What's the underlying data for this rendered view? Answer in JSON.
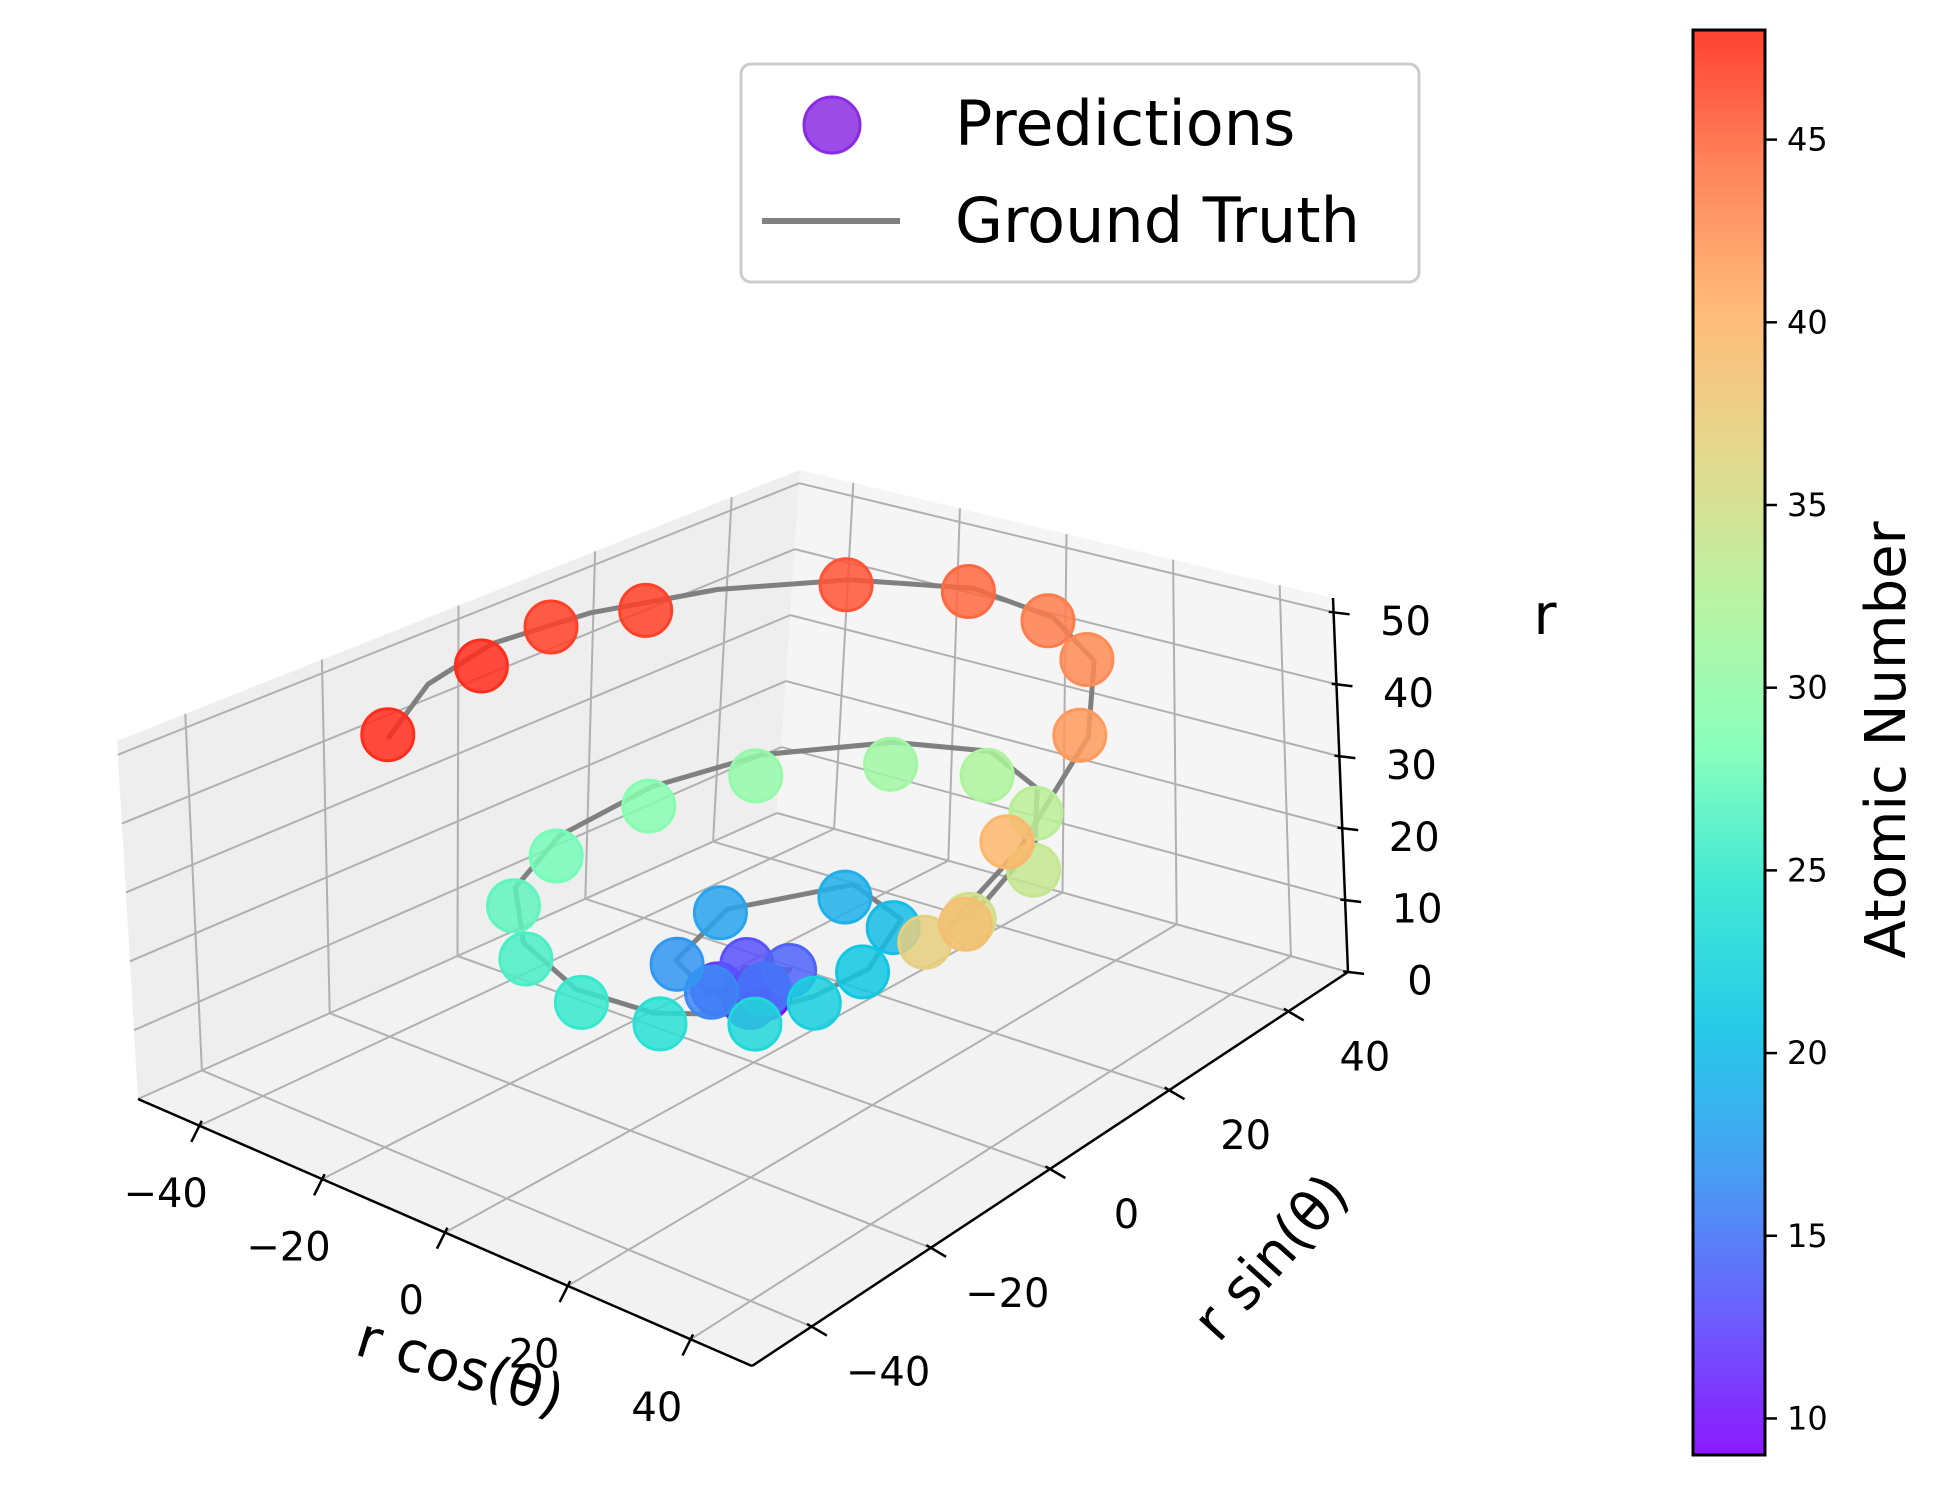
{
  "chart_data": {
    "type": "scatter",
    "projection": "3d",
    "xlabel": "r cos(θ)",
    "ylabel": "r sin(θ)",
    "zlabel": "r",
    "xticks": [
      "−40",
      "−20",
      "0",
      "20",
      "40"
    ],
    "yticks": [
      "−40",
      "−20",
      "0",
      "20",
      "40"
    ],
    "zticks": [
      "0",
      "10",
      "20",
      "30",
      "40",
      "50"
    ],
    "xlim": [
      -50,
      50
    ],
    "ylim": [
      -50,
      50
    ],
    "zlim": [
      0,
      52
    ],
    "legend": {
      "position": "top-center",
      "entries": [
        {
          "label": "Predictions",
          "kind": "marker",
          "color": "#8a2be2"
        },
        {
          "label": "Ground Truth",
          "kind": "line",
          "color": "#808080"
        }
      ]
    },
    "colorbar": {
      "label": "Atomic Number",
      "range": [
        9,
        48
      ],
      "ticks": [
        "10",
        "15",
        "20",
        "25",
        "30",
        "35",
        "40",
        "45"
      ],
      "colormap": "rainbow"
    },
    "series": [
      {
        "name": "Predictions",
        "kind": "scatter",
        "color_by": "Atomic Number",
        "points": [
          {
            "x": -0.5,
            "y": 0.5,
            "z": 9.2,
            "c": 9
          },
          {
            "x": 1.2,
            "y": 1.5,
            "z": 10.1,
            "c": 10
          },
          {
            "x": 2.2,
            "y": -1.8,
            "z": 10.8,
            "c": 11
          },
          {
            "x": -2.6,
            "y": -2.4,
            "z": 11.6,
            "c": 12
          },
          {
            "x": -3.2,
            "y": 2.8,
            "z": 12.4,
            "c": 13
          },
          {
            "x": 3.4,
            "y": 3.6,
            "z": 13.2,
            "c": 14
          },
          {
            "x": 5.2,
            "y": -2.0,
            "z": 14.0,
            "c": 15
          },
          {
            "x": 1.4,
            "y": -6.8,
            "z": 14.8,
            "c": 16
          },
          {
            "x": -6.2,
            "y": -5.2,
            "z": 15.6,
            "c": 17
          },
          {
            "x": -10.6,
            "y": 5.6,
            "z": 16.4,
            "c": 18
          },
          {
            "x": 0.5,
            "y": 15.2,
            "z": 17.2,
            "c": 19
          },
          {
            "x": 12.6,
            "y": 12.0,
            "z": 18.0,
            "c": 20
          },
          {
            "x": 18.4,
            "y": 2.0,
            "z": 18.8,
            "c": 21
          },
          {
            "x": 19.8,
            "y": -6.8,
            "z": 19.6,
            "c": 22
          },
          {
            "x": 18.2,
            "y": -14.6,
            "z": 20.4,
            "c": 23
          },
          {
            "x": 9.6,
            "y": -21.6,
            "z": 21.2,
            "c": 24
          },
          {
            "x": -0.8,
            "y": -24.4,
            "z": 22.0,
            "c": 25
          },
          {
            "x": -12.8,
            "y": -22.2,
            "z": 22.8,
            "c": 26
          },
          {
            "x": -22.8,
            "y": -15.2,
            "z": 23.6,
            "c": 27
          },
          {
            "x": -27.4,
            "y": -4.6,
            "z": 24.4,
            "c": 28
          },
          {
            "x": -27.4,
            "y": 9.6,
            "z": 25.2,
            "c": 29
          },
          {
            "x": -21.6,
            "y": 21.0,
            "z": 26.0,
            "c": 30
          },
          {
            "x": -8.2,
            "y": 30.2,
            "z": 26.8,
            "c": 31
          },
          {
            "x": 6.4,
            "y": 32.6,
            "z": 27.6,
            "c": 32
          },
          {
            "x": 20.8,
            "y": 27.8,
            "z": 28.4,
            "c": 33
          },
          {
            "x": 32.2,
            "y": 17.6,
            "z": 29.2,
            "c": 34
          },
          {
            "x": 34.6,
            "y": 5.6,
            "z": 30.0,
            "c": 35
          },
          {
            "x": 36.2,
            "y": -2.4,
            "z": 32.2,
            "c": 37
          },
          {
            "x": 39.6,
            "y": 1.2,
            "z": 33.8,
            "c": 39
          },
          {
            "x": 38.4,
            "y": 9.4,
            "z": 40.6,
            "c": 40
          },
          {
            "x": 30.0,
            "y": 27.6,
            "z": 42.4,
            "c": 42
          },
          {
            "x": 17.2,
            "y": 39.2,
            "z": 43.4,
            "c": 43
          },
          {
            "x": 4.6,
            "y": 43.6,
            "z": 43.8,
            "c": 44
          },
          {
            "x": -10.4,
            "y": 43.8,
            "z": 44.8,
            "c": 45
          },
          {
            "x": -25.6,
            "y": 37.8,
            "z": 45.4,
            "c": 46
          },
          {
            "x": -41.2,
            "y": 20.6,
            "z": 45.4,
            "c": 47
          },
          {
            "x": -44.2,
            "y": 9.0,
            "z": 47.0,
            "c": 47
          },
          {
            "x": -43.8,
            "y": -1.6,
            "z": 45.8,
            "c": 48
          },
          {
            "x": -37.4,
            "y": -20.6,
            "z": 46.2,
            "c": 48
          }
        ]
      },
      {
        "name": "Ground Truth",
        "kind": "line",
        "color": "#808080",
        "points": [
          {
            "x": 0,
            "y": -0.5,
            "z": 8
          },
          {
            "x": 1.5,
            "y": 1.5,
            "z": 9
          },
          {
            "x": 2.8,
            "y": -1.2,
            "z": 10
          },
          {
            "x": -2.0,
            "y": -2.8,
            "z": 11
          },
          {
            "x": -3.4,
            "y": 2.6,
            "z": 12
          },
          {
            "x": 3.0,
            "y": 4.0,
            "z": 13
          },
          {
            "x": 5.6,
            "y": -2.2,
            "z": 14
          },
          {
            "x": 1.0,
            "y": -7.2,
            "z": 15
          },
          {
            "x": -6.6,
            "y": -5.0,
            "z": 16
          },
          {
            "x": -9.8,
            "y": 6.0,
            "z": 17
          },
          {
            "x": 0,
            "y": 17,
            "z": 18
          },
          {
            "x": 13.2,
            "y": 12.8,
            "z": 19
          },
          {
            "x": 20,
            "y": 1.6,
            "z": 20
          },
          {
            "x": 20.2,
            "y": -7.2,
            "z": 21
          },
          {
            "x": 17.6,
            "y": -15.2,
            "z": 22
          },
          {
            "x": 9.2,
            "y": -22.0,
            "z": 23
          },
          {
            "x": -1.2,
            "y": -24.6,
            "z": 24
          },
          {
            "x": -13.2,
            "y": -22.0,
            "z": 25
          },
          {
            "x": -23.0,
            "y": -14.6,
            "z": 26
          },
          {
            "x": -27.6,
            "y": -3.8,
            "z": 27
          },
          {
            "x": -27.2,
            "y": 10.0,
            "z": 28
          },
          {
            "x": -21.2,
            "y": 21.6,
            "z": 29
          },
          {
            "x": -8.0,
            "y": 30.4,
            "z": 30
          },
          {
            "x": 6.6,
            "y": 33.0,
            "z": 31
          },
          {
            "x": 21.0,
            "y": 28.0,
            "z": 32
          },
          {
            "x": 32.4,
            "y": 18.0,
            "z": 33
          },
          {
            "x": 38.0,
            "y": 6.0,
            "z": 34
          },
          {
            "x": 39.8,
            "y": -2.2,
            "z": 35
          },
          {
            "x": 39.2,
            "y": 10.4,
            "z": 39
          },
          {
            "x": 30.8,
            "y": 28.2,
            "z": 42
          },
          {
            "x": 17.8,
            "y": 39.8,
            "z": 43
          },
          {
            "x": 4.8,
            "y": 44.2,
            "z": 44
          },
          {
            "x": -10.2,
            "y": 44.4,
            "z": 45
          },
          {
            "x": -25.4,
            "y": 38.2,
            "z": 46
          },
          {
            "x": -37.0,
            "y": 27.8,
            "z": 46.5
          },
          {
            "x": -43.6,
            "y": 14.4,
            "z": 47
          },
          {
            "x": -45.2,
            "y": 1.2,
            "z": 47.5
          },
          {
            "x": -41.6,
            "y": -11.2,
            "z": 48
          },
          {
            "x": -34.4,
            "y": -22.8,
            "z": 48
          }
        ]
      }
    ]
  }
}
